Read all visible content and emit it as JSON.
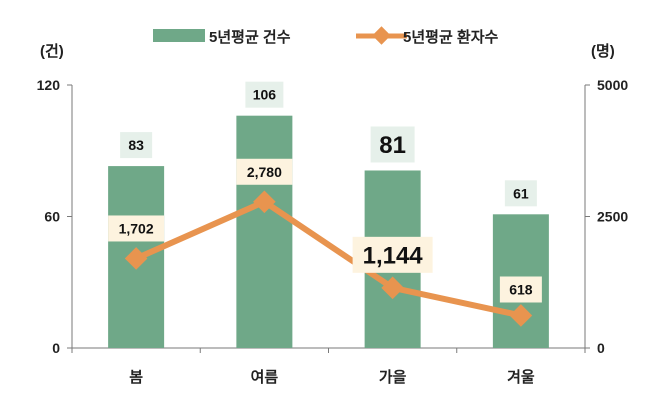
{
  "chart_data": {
    "type": "bar",
    "categories": [
      "봄",
      "여름",
      "가을",
      "겨울"
    ],
    "series": [
      {
        "name": "5년평균 건수",
        "type": "bar",
        "axis": "left",
        "values": [
          83,
          106,
          81,
          61
        ],
        "labels": [
          "83",
          "106",
          "81",
          "61"
        ],
        "color": "#6fa888"
      },
      {
        "name": "5년평균 환자수",
        "type": "line",
        "axis": "right",
        "values": [
          1702,
          2780,
          1144,
          618
        ],
        "labels": [
          "1,702",
          "2,780",
          "1,144",
          "618"
        ],
        "color": "#e8944f"
      }
    ],
    "left_axis": {
      "unit": "(건)",
      "ylim": [
        0,
        120
      ],
      "ticks": [
        "0",
        "60",
        "120"
      ]
    },
    "right_axis": {
      "unit": "(명)",
      "ylim": [
        0,
        5000
      ],
      "ticks": [
        "0",
        "2500",
        "5000"
      ]
    },
    "legend_position": "top",
    "grid": false
  }
}
